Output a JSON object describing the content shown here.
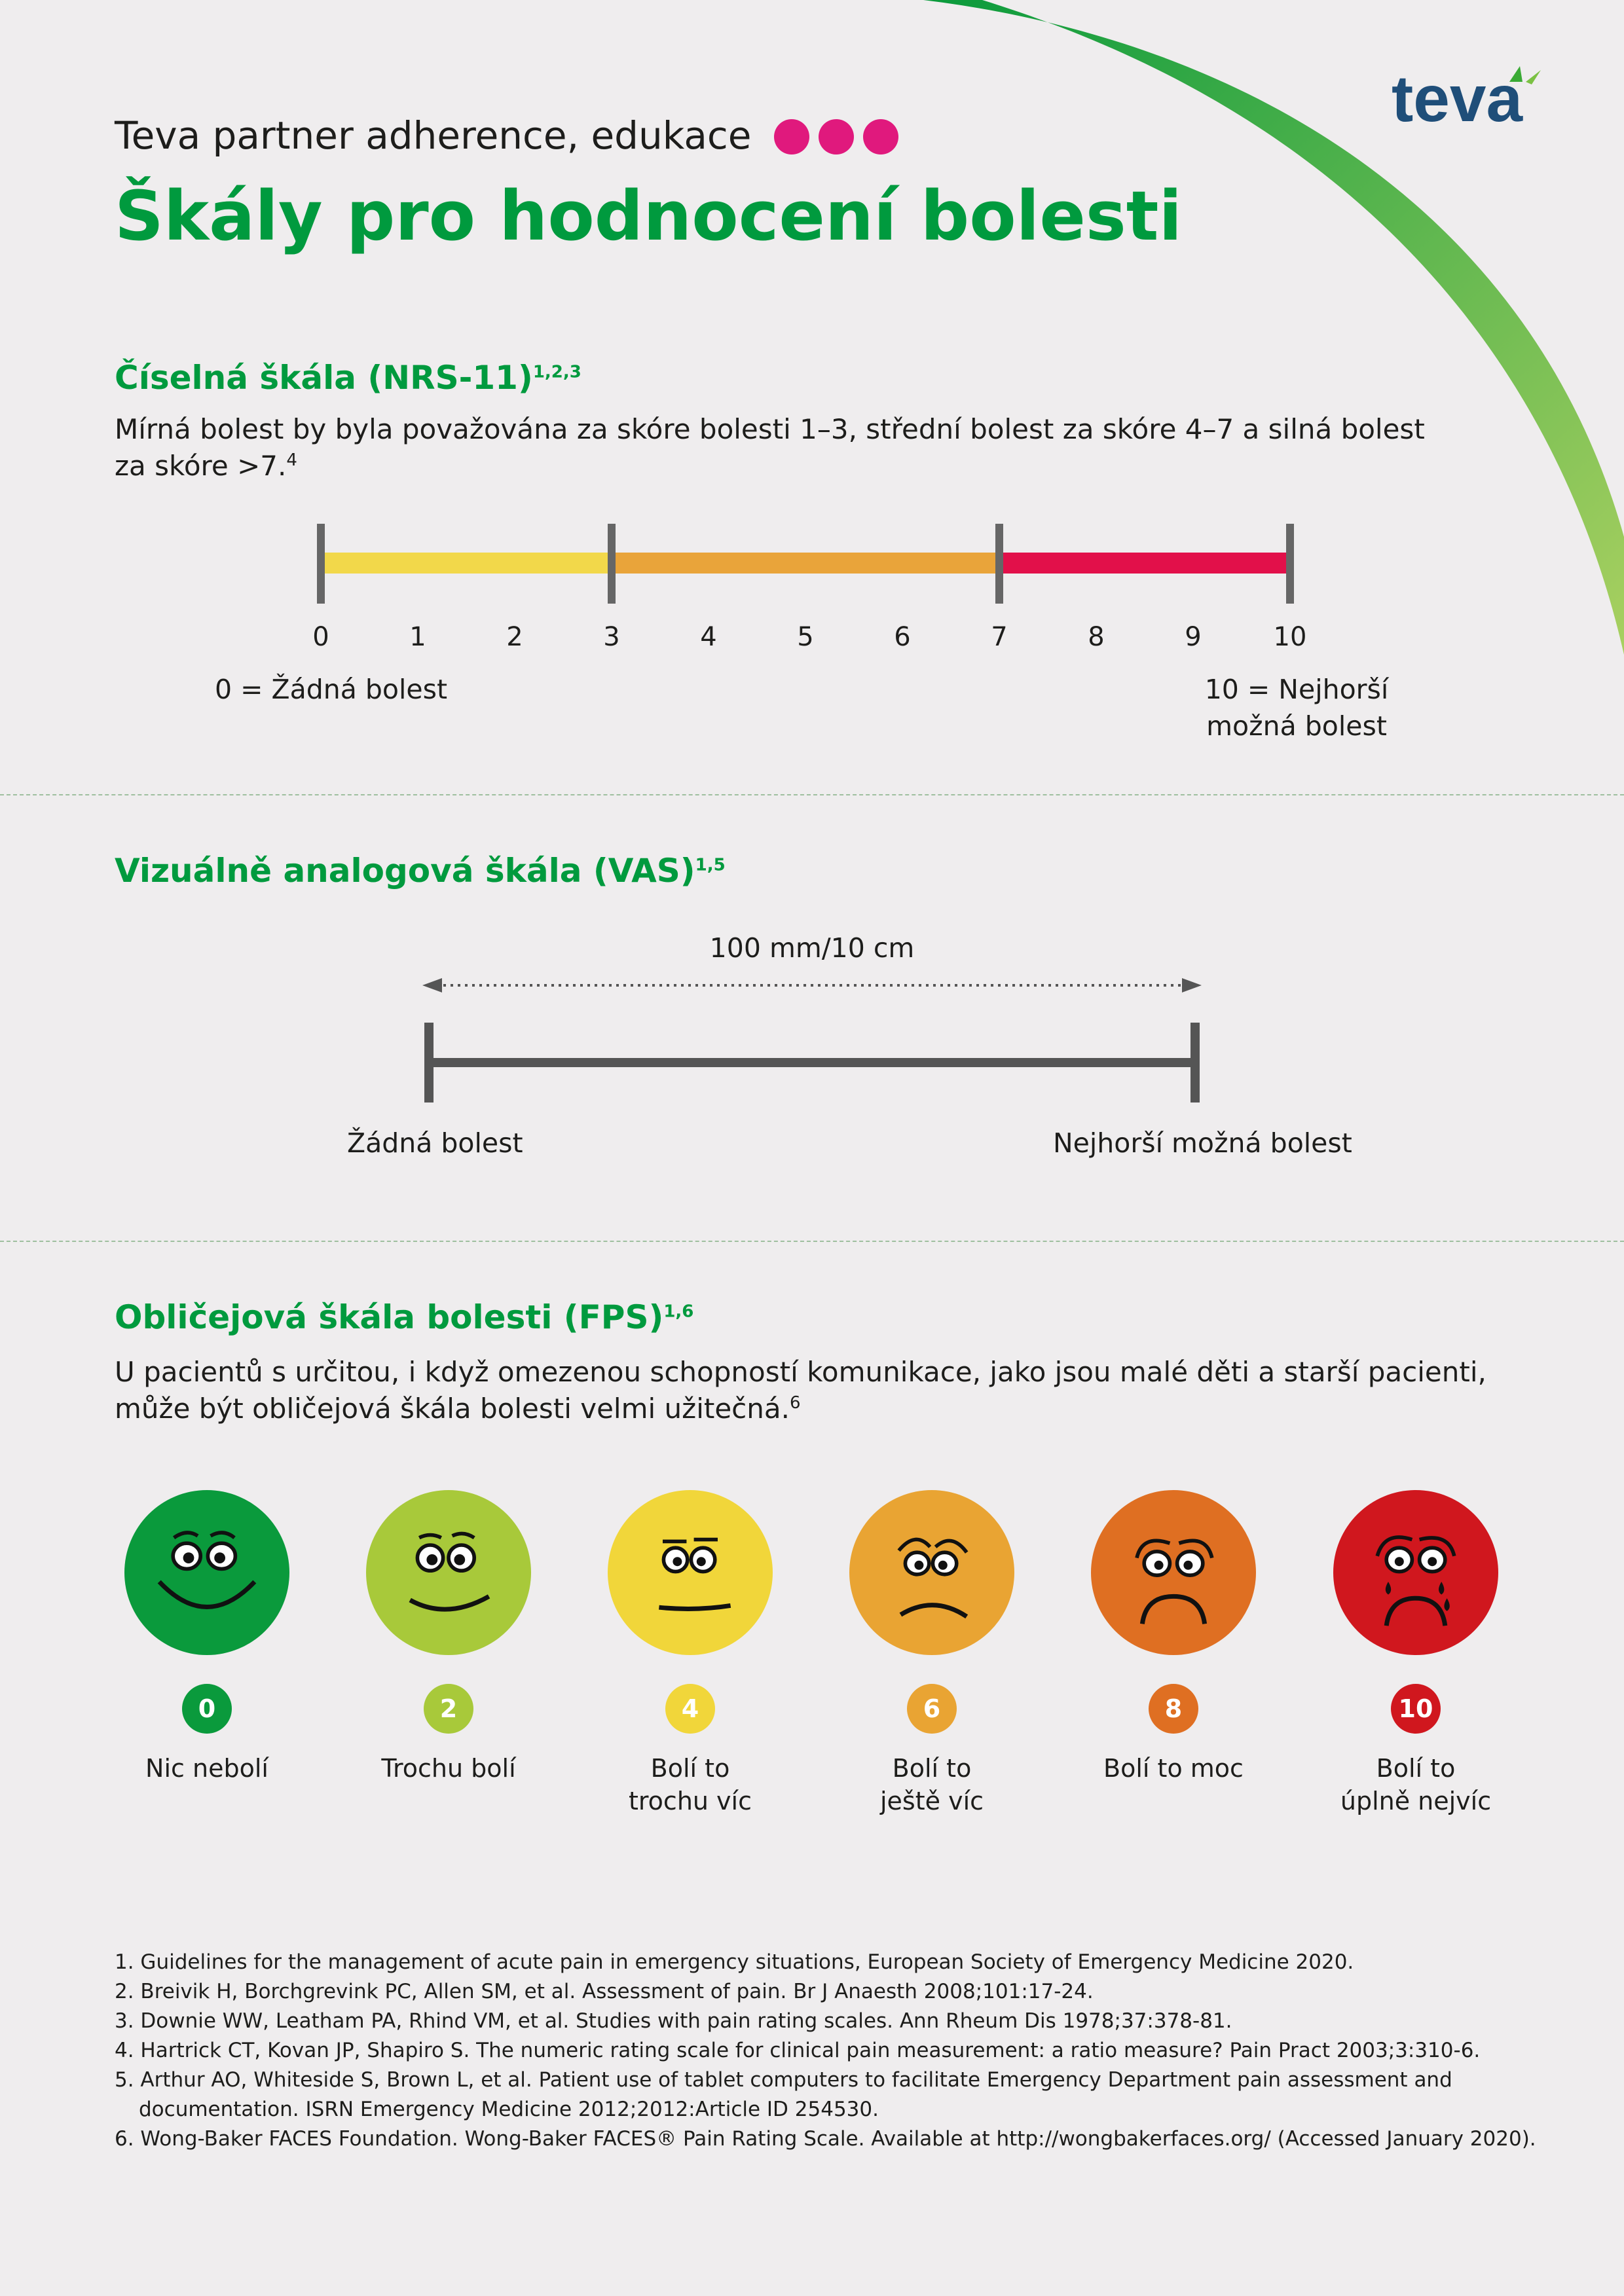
{
  "header": {
    "subtitle": "Teva partner adherence, edukace",
    "title": "Škály pro hodnocení bolesti",
    "logo": "teva",
    "accent_dots_color": "#e0197d"
  },
  "nrs": {
    "title": "Číselná škála (NRS-11)",
    "title_refs": "1,2,3",
    "desc_line1": "Mírná bolest by byla považována za skóre bolesti 1–3, střední bolest za skóre 4–7 a silná bolest",
    "desc_line2": "za skóre >7.",
    "desc_ref": "4",
    "ticks": [
      "0",
      "1",
      "2",
      "3",
      "4",
      "5",
      "6",
      "7",
      "8",
      "9",
      "10"
    ],
    "segments": [
      {
        "from": 0,
        "to": 3,
        "color": "#f2d84a"
      },
      {
        "from": 3,
        "to": 7,
        "color": "#e9a43a"
      },
      {
        "from": 7,
        "to": 10,
        "color": "#e2104a"
      }
    ],
    "left_label": "0 = Žádná bolest",
    "right_label_line1": "10 = Nejhorší",
    "right_label_line2": "možná bolest"
  },
  "vas": {
    "title": "Vizuálně analogová škála (VAS)",
    "title_refs": "1,5",
    "length_label": "100 mm/10 cm",
    "left_label": "Žádná bolest",
    "right_label": "Nejhorší možná bolest"
  },
  "fps": {
    "title": "Obličejová škála bolesti (FPS)",
    "title_refs": "1,6",
    "desc_line1": "U pacientů s určitou, i když omezenou schopností komunikace, jako jsou malé děti a starší pacienti,",
    "desc_line2": "může být obličejová škála bolesti velmi užitečná.",
    "desc_ref": "6",
    "faces": [
      {
        "score": "0",
        "label1": "Nic nebolí",
        "label2": "",
        "color": "#0a9a3c",
        "icon": "very-happy-face-icon"
      },
      {
        "score": "2",
        "label1": "Trochu bolí",
        "label2": "",
        "color": "#a8c93a",
        "icon": "happy-face-icon"
      },
      {
        "score": "4",
        "label1": "Bolí to",
        "label2": "trochu víc",
        "color": "#f1d63a",
        "icon": "neutral-face-icon"
      },
      {
        "score": "6",
        "label1": "Bolí to",
        "label2": "ještě víc",
        "color": "#e9a433",
        "icon": "sad-face-icon"
      },
      {
        "score": "8",
        "label1": "Bolí to moc",
        "label2": "",
        "color": "#df6f22",
        "icon": "very-sad-face-icon"
      },
      {
        "score": "10",
        "label1": "Bolí to",
        "label2": "úplně nejvíc",
        "color": "#d0171e",
        "icon": "crying-face-icon"
      }
    ]
  },
  "references": [
    "1. Guidelines for the management of acute pain in emergency situations, European Society of Emergency Medicine 2020.",
    "2. Breivik H, Borchgrevink PC, Allen SM, et al. Assessment of pain. Br J Anaesth 2008;101:17-24.",
    "3. Downie WW, Leatham PA, Rhind VM, et al. Studies with pain rating scales. Ann Rheum Dis 1978;37:378-81.",
    "4. Hartrick CT, Kovan JP, Shapiro S. The numeric rating scale for clinical pain measurement: a ratio measure? Pain Pract 2003;3:310-6.",
    "5. Arthur AO, Whiteside S, Brown L, et al. Patient use of tablet computers to facilitate Emergency Department pain assessment and documentation. ISRN Emergency Medicine 2012;2012:Article ID 254530.",
    "6. Wong-Baker FACES Foundation. Wong-Baker FACES® Pain Rating Scale. Available at http://wongbakerfaces.org/ (Accessed January 2020)."
  ]
}
